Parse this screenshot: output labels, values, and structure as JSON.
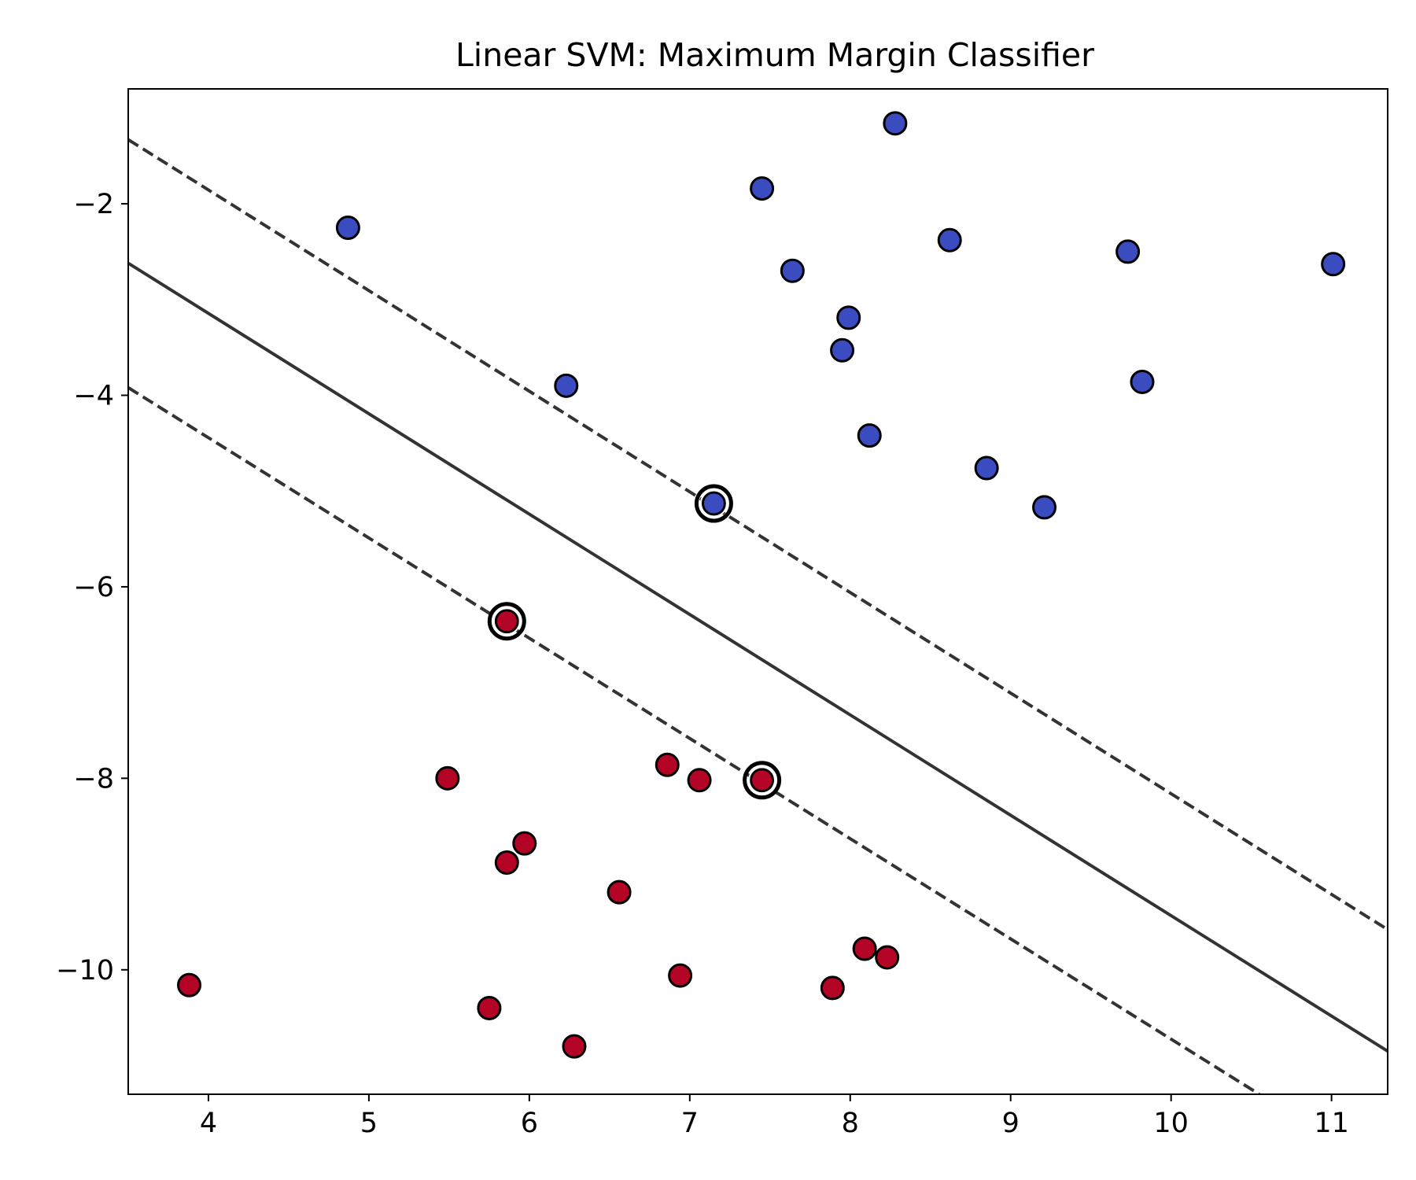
{
  "chart_data": {
    "type": "scatter",
    "title": "Linear SVM: Maximum Margin Classifier",
    "xlabel": "",
    "ylabel": "",
    "xlim": [
      3.5,
      11.35
    ],
    "ylim": [
      -11.3,
      -0.8
    ],
    "xticks": [
      4,
      5,
      6,
      7,
      8,
      9,
      10,
      11
    ],
    "yticks": [
      -2,
      -4,
      -6,
      -8,
      -10
    ],
    "xtick_labels": [
      "4",
      "5",
      "6",
      "7",
      "8",
      "9",
      "10",
      "11"
    ],
    "ytick_labels": [
      "−2",
      "−4",
      "−6",
      "−8",
      "−10"
    ],
    "grid": false,
    "series": [
      {
        "color": "#3b4cc0",
        "points": [
          [
            8.28,
            -1.16
          ],
          [
            7.45,
            -1.84
          ],
          [
            4.87,
            -2.25
          ],
          [
            8.62,
            -2.38
          ],
          [
            9.73,
            -2.5
          ],
          [
            11.01,
            -2.63
          ],
          [
            7.64,
            -2.7
          ],
          [
            7.99,
            -3.19
          ],
          [
            7.95,
            -3.53
          ],
          [
            6.23,
            -3.9
          ],
          [
            9.82,
            -3.86
          ],
          [
            8.12,
            -4.42
          ],
          [
            8.85,
            -4.76
          ],
          [
            9.21,
            -5.17
          ],
          [
            7.15,
            -5.13
          ]
        ]
      },
      {
        "color": "#b40426",
        "points": [
          [
            5.86,
            -6.36
          ],
          [
            7.45,
            -8.02
          ],
          [
            5.49,
            -8.0
          ],
          [
            6.86,
            -7.86
          ],
          [
            7.06,
            -8.02
          ],
          [
            5.97,
            -8.68
          ],
          [
            5.86,
            -8.88
          ],
          [
            6.56,
            -9.19
          ],
          [
            8.09,
            -9.78
          ],
          [
            8.23,
            -9.87
          ],
          [
            6.94,
            -10.06
          ],
          [
            3.88,
            -10.16
          ],
          [
            7.89,
            -10.19
          ],
          [
            5.75,
            -10.4
          ],
          [
            6.28,
            -10.8
          ]
        ]
      }
    ],
    "support_vectors": [
      [
        7.15,
        -5.13
      ],
      [
        5.86,
        -6.36
      ],
      [
        7.45,
        -8.02
      ]
    ],
    "lines": [
      {
        "role": "decision boundary",
        "style": "solid",
        "points": [
          [
            3.5,
            -2.62
          ],
          [
            11.35,
            -10.85
          ]
        ]
      },
      {
        "role": "margin",
        "style": "dashed",
        "points": [
          [
            3.5,
            -1.33
          ],
          [
            11.35,
            -9.58
          ]
        ]
      },
      {
        "role": "margin",
        "style": "dashed",
        "points": [
          [
            3.5,
            -3.92
          ],
          [
            10.55,
            -11.3
          ]
        ]
      }
    ],
    "line_color": "#333333"
  }
}
